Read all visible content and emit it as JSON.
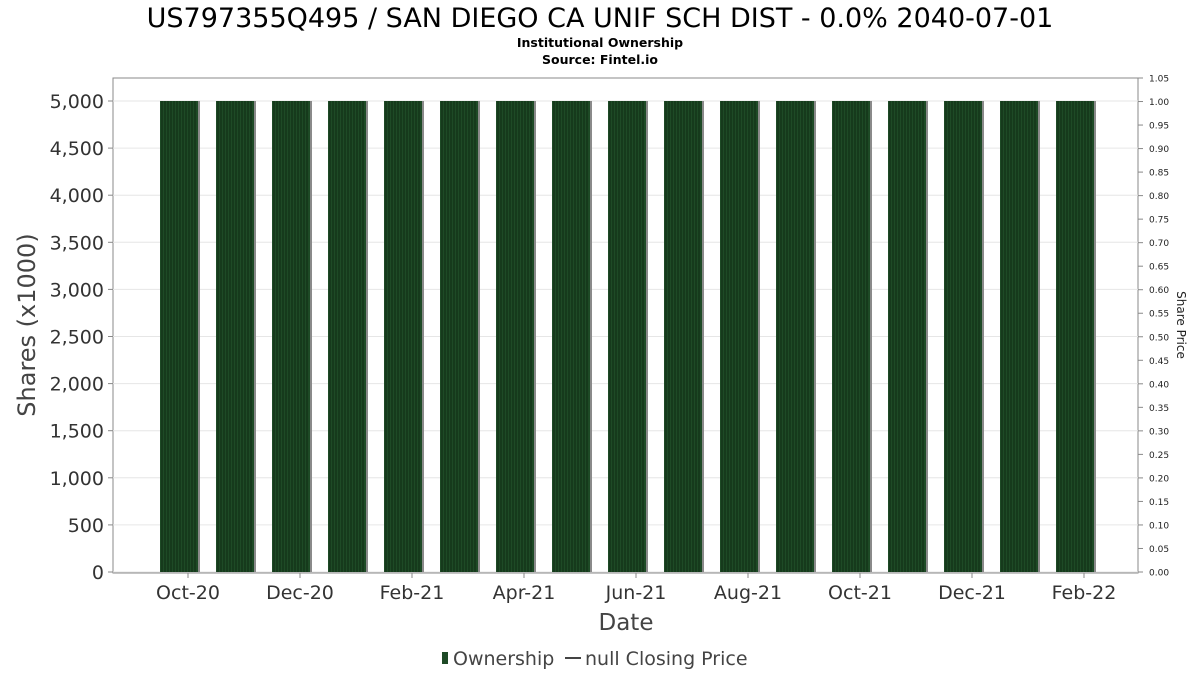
{
  "chart_data": {
    "type": "bar",
    "title": "US797355Q495 / SAN DIEGO CA UNIF SCH DIST - 0.0% 2040-07-01",
    "subtitle": "Institutional Ownership",
    "source": "Source: Fintel.io",
    "xlabel": "Date",
    "ylabel": "Shares (x1000)",
    "y2label": "Share Price",
    "ylim": [
      0,
      5000
    ],
    "y2lim": [
      0,
      1.05
    ],
    "yticks": [
      "0",
      "500",
      "1,000",
      "1,500",
      "2,000",
      "2,500",
      "3,000",
      "3,500",
      "4,000",
      "4,500",
      "5,000"
    ],
    "y2ticks": [
      "0.00",
      "0.05",
      "0.10",
      "0.15",
      "0.20",
      "0.25",
      "0.30",
      "0.35",
      "0.40",
      "0.45",
      "0.50",
      "0.55",
      "0.60",
      "0.65",
      "0.70",
      "0.75",
      "0.80",
      "0.85",
      "0.90",
      "0.95",
      "1.00",
      "1.05"
    ],
    "xticks": [
      "Oct-20",
      "Dec-20",
      "Feb-21",
      "Apr-21",
      "Jun-21",
      "Aug-21",
      "Oct-21",
      "Dec-21",
      "Feb-22"
    ],
    "categories": [
      "Oct-20",
      "Nov-20",
      "Dec-20",
      "Jan-21",
      "Feb-21",
      "Mar-21",
      "Apr-21",
      "May-21",
      "Jun-21",
      "Jul-21",
      "Aug-21",
      "Sep-21",
      "Oct-21",
      "Nov-21",
      "Dec-21",
      "Jan-22",
      "Feb-22"
    ],
    "series": [
      {
        "name": "Ownership",
        "values": [
          5000,
          5000,
          5000,
          5000,
          5000,
          5000,
          5000,
          5000,
          5000,
          5000,
          5000,
          5000,
          5000,
          5000,
          5000,
          5000,
          5000
        ]
      }
    ],
    "legend": {
      "placement": "bottom",
      "items": [
        "Ownership",
        "null Closing Price"
      ]
    },
    "grid": true,
    "colors": {
      "bar": "#1e4a26",
      "bar_stripe": "#0d2a12",
      "bar_shadow": "#8a8a8a",
      "grid": "#e6e6e6",
      "axis": "#888888"
    }
  }
}
